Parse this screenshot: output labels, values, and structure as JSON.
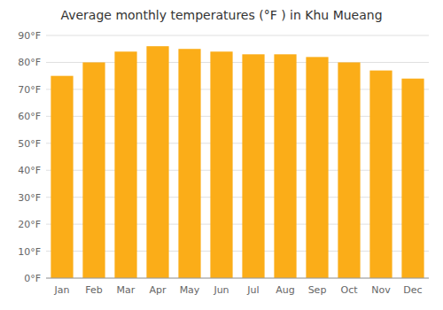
{
  "chart_data": {
    "type": "bar",
    "title": "Average monthly temperatures (°F ) in Khu Mueang",
    "categories": [
      "Jan",
      "Feb",
      "Mar",
      "Apr",
      "May",
      "Jun",
      "Jul",
      "Aug",
      "Sep",
      "Oct",
      "Nov",
      "Dec"
    ],
    "values": [
      75,
      80,
      84,
      86,
      85,
      84,
      83,
      83,
      82,
      80,
      77,
      74
    ],
    "color": "#FBAD18",
    "ylim": [
      0,
      90
    ],
    "yticks": [
      {
        "value": 0,
        "label": "0°F"
      },
      {
        "value": 10,
        "label": "10°F"
      },
      {
        "value": 20,
        "label": "20°F"
      },
      {
        "value": 30,
        "label": "30°F"
      },
      {
        "value": 40,
        "label": "40°F"
      },
      {
        "value": 50,
        "label": "50°F"
      },
      {
        "value": 60,
        "label": "60°F"
      },
      {
        "value": 70,
        "label": "70°F"
      },
      {
        "value": 80,
        "label": "80°F"
      },
      {
        "value": 90,
        "label": "90°F"
      }
    ],
    "grid": true
  }
}
